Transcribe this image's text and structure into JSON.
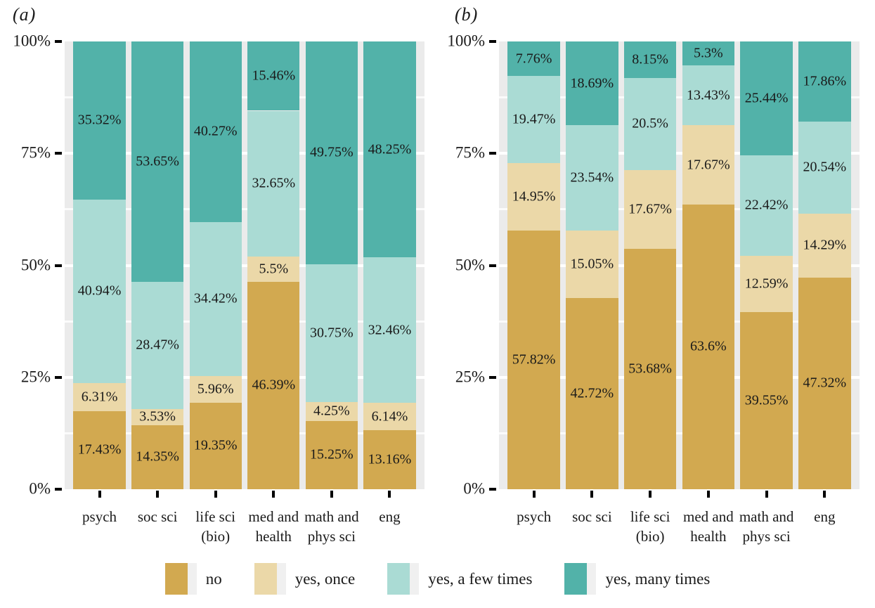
{
  "figure": {
    "plot_background": "#EBEBEB",
    "text_color": "#1a1a1a"
  },
  "chart_data": [
    {
      "type": "bar",
      "subtype": "stacked-percent",
      "panel": "(a)",
      "categories": [
        "psych",
        "soc sci",
        "life sci\n(bio)",
        "med and\nhealth",
        "math and\nphys sci",
        "eng"
      ],
      "series": [
        {
          "name": "no",
          "color": "#D2A950",
          "values": [
            17.43,
            14.35,
            19.35,
            46.39,
            15.25,
            13.16
          ]
        },
        {
          "name": "yes, once",
          "color": "#EBD8A8",
          "values": [
            6.31,
            3.53,
            5.96,
            5.5,
            4.25,
            6.14
          ]
        },
        {
          "name": "yes, a few times",
          "color": "#AADBD4",
          "values": [
            40.94,
            28.47,
            34.42,
            32.65,
            30.75,
            32.46
          ]
        },
        {
          "name": "yes, many times",
          "color": "#52B2A9",
          "values": [
            35.32,
            53.65,
            40.27,
            15.46,
            49.75,
            48.25
          ]
        }
      ],
      "y_ticks": [
        "0%",
        "25%",
        "50%",
        "75%",
        "100%"
      ],
      "ylim": [
        0,
        100
      ],
      "grid": "on",
      "data_labels_suffix": "%"
    },
    {
      "type": "bar",
      "subtype": "stacked-percent",
      "panel": "(b)",
      "categories": [
        "psych",
        "soc sci",
        "life sci\n(bio)",
        "med and\nhealth",
        "math and\nphys sci",
        "eng"
      ],
      "series": [
        {
          "name": "no",
          "color": "#D2A950",
          "values": [
            57.82,
            42.72,
            53.68,
            63.6,
            39.55,
            47.32
          ]
        },
        {
          "name": "yes, once",
          "color": "#EBD8A8",
          "values": [
            14.95,
            15.05,
            17.67,
            17.67,
            12.59,
            14.29
          ]
        },
        {
          "name": "yes, a few times",
          "color": "#AADBD4",
          "values": [
            19.47,
            23.54,
            20.5,
            13.43,
            22.42,
            20.54
          ]
        },
        {
          "name": "yes, many times",
          "color": "#52B2A9",
          "values": [
            7.76,
            18.69,
            8.15,
            5.3,
            25.44,
            17.86
          ]
        }
      ],
      "y_ticks": [
        "0%",
        "25%",
        "50%",
        "75%",
        "100%"
      ],
      "ylim": [
        0,
        100
      ],
      "grid": "on",
      "data_labels_suffix": "%"
    }
  ],
  "legend": {
    "position": "bottom",
    "items": [
      {
        "label": "no",
        "color": "#D2A950"
      },
      {
        "label": "yes, once",
        "color": "#EBD8A8"
      },
      {
        "label": "yes, a few times",
        "color": "#AADBD4"
      },
      {
        "label": "yes, many times",
        "color": "#52B2A9"
      }
    ]
  }
}
